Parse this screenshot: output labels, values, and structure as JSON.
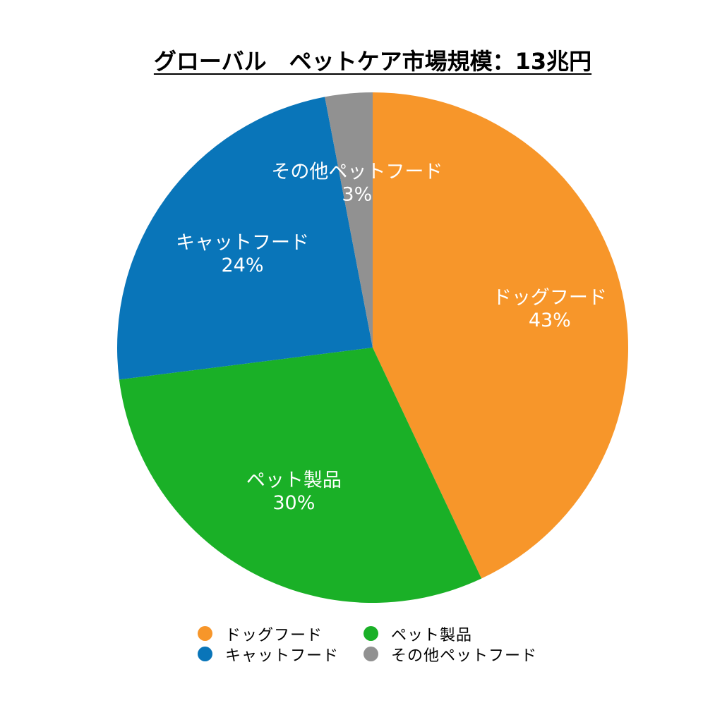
{
  "chart_data": {
    "type": "pie",
    "title": "グローバル　ペットケア市場規模：13兆円",
    "start_angle_deg": 0,
    "direction": "clockwise",
    "slices": [
      {
        "label": "ドッグフード",
        "value": 43,
        "display": "43%",
        "color": "#F7962A"
      },
      {
        "label": "ペット製品",
        "value": 30,
        "display": "30%",
        "color": "#1AB027"
      },
      {
        "label": "キャットフード",
        "value": 24,
        "display": "24%",
        "color": "#0975B9"
      },
      {
        "label": "その他ペットフード",
        "value": 3,
        "display": "3%",
        "color": "#919191"
      }
    ],
    "legend": {
      "placement": "bottom",
      "entries": [
        "ドッグフード",
        "ペット製品",
        "キャットフード",
        "その他ペットフード"
      ]
    }
  }
}
